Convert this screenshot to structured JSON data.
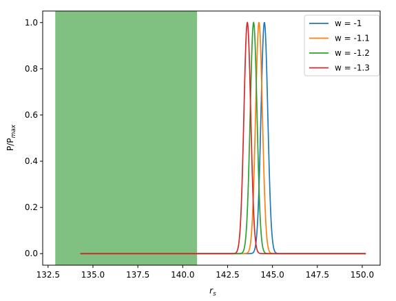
{
  "chart_data": {
    "type": "line",
    "title": "",
    "xlabel": "r",
    "xlabel_sub": "s",
    "ylabel": "P/P",
    "ylabel_sub": "max",
    "xlim": [
      132.2,
      151.0
    ],
    "ylim": [
      -0.05,
      1.05
    ],
    "x_ticks": [
      132.5,
      135.0,
      137.5,
      140.0,
      142.5,
      145.0,
      147.5,
      150.0
    ],
    "x_tick_labels": [
      "132.5",
      "135.0",
      "137.5",
      "140.0",
      "142.5",
      "145.0",
      "147.5",
      "150.0"
    ],
    "y_ticks": [
      0.0,
      0.2,
      0.4,
      0.6,
      0.8,
      1.0
    ],
    "y_tick_labels": [
      "0.0",
      "0.2",
      "0.4",
      "0.6",
      "0.8",
      "1.0"
    ],
    "grid": false,
    "legend_position": "top-right",
    "shaded_region": {
      "x_start": 132.9,
      "x_end": 140.8,
      "color": "#80c080"
    },
    "x_range": [
      134.3,
      150.2
    ],
    "series": [
      {
        "name": "w = -1",
        "color": "#1f77b4",
        "peak_x": 144.55,
        "width": 0.19
      },
      {
        "name": "w = -1.1",
        "color": "#ff7f0e",
        "peak_x": 144.25,
        "width": 0.19
      },
      {
        "name": "w = -1.2",
        "color": "#2ca02c",
        "peak_x": 143.95,
        "width": 0.19
      },
      {
        "name": "w = -1.3",
        "color": "#d62728",
        "peak_x": 143.6,
        "width": 0.19
      }
    ]
  }
}
